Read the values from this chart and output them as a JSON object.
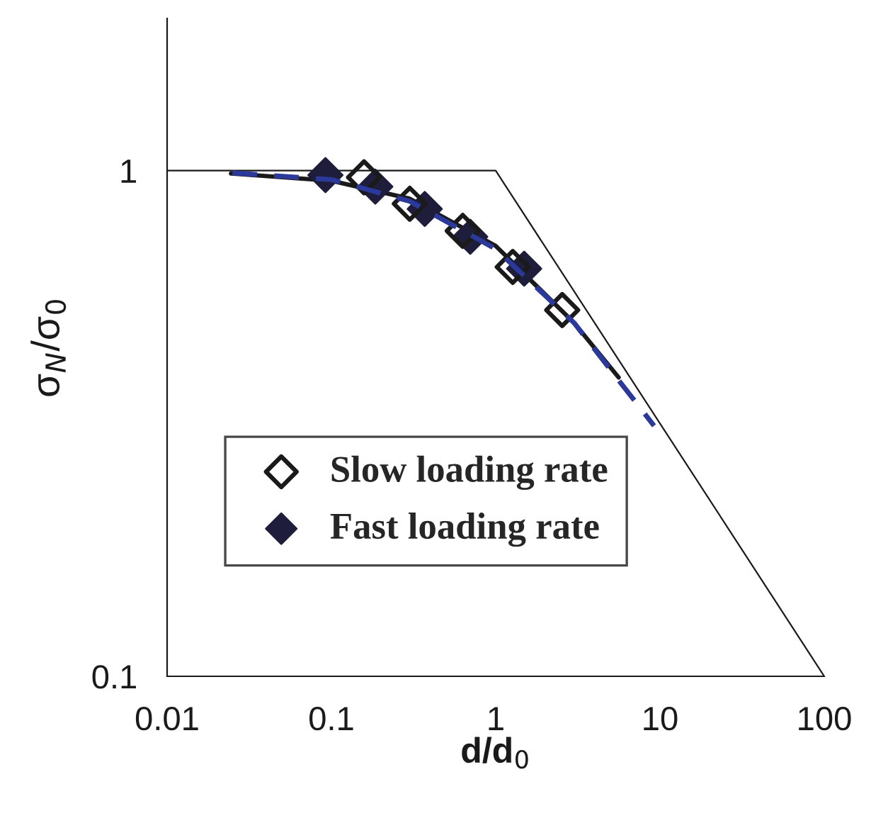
{
  "chart_data": {
    "type": "scatter",
    "xlabel": "d/d$_{0}$",
    "ylabel": "σ$_{N}$/σ$_{0}$",
    "log": "xy",
    "xlim": [
      0.01,
      100
    ],
    "ylim": [
      0.1,
      2
    ],
    "xticks": [
      0.01,
      0.1,
      1,
      10,
      100
    ],
    "yticks": [
      {
        "value": 0.1,
        "label": "0.1"
      },
      {
        "value": 1,
        "label": "1"
      }
    ],
    "grid": false,
    "legend": "lower left",
    "series": [
      {
        "name": "Slow loading rate",
        "marker": "diamond",
        "color": "#1a1a1a",
        "x": [
          0.158,
          0.3,
          0.63,
          1.27,
          2.54
        ],
        "values": [
          0.97,
          0.86,
          0.76,
          0.645,
          0.53
        ]
      },
      {
        "name": "Fast loading rate",
        "marker": "diamond",
        "color": "#1e1e3c",
        "x": [
          0.092,
          0.185,
          0.37,
          0.7,
          1.49
        ],
        "values": [
          0.98,
          0.93,
          0.84,
          0.74,
          0.64
        ]
      },
      {
        "type": "line",
        "line_style": "solid",
        "color": "#1a1a1a",
        "x": [
          0.0245,
          0.1,
          0.3,
          1,
          3,
          5.6
        ],
        "values": [
          0.987,
          0.955,
          0.88,
          0.71,
          0.5,
          0.39
        ]
      },
      {
        "type": "line",
        "line_style": "dashed",
        "color": "#2b3a9a",
        "x": [
          0.025,
          0.1,
          0.3,
          1,
          3,
          9.2
        ],
        "values": [
          0.99,
          0.96,
          0.87,
          0.7,
          0.5,
          0.313
        ]
      },
      {
        "type": "line",
        "line_style": "solid",
        "color": "#1a1a1a",
        "x": [
          0.01,
          1,
          100
        ],
        "values": [
          1,
          1,
          0.1
        ]
      }
    ]
  }
}
